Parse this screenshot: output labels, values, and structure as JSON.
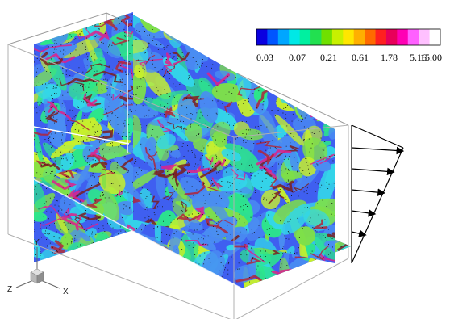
{
  "colorbar": {
    "tick_labels": [
      "0.03",
      "0.07",
      "0.21",
      "0.61",
      "1.78",
      "5.16",
      "15.00"
    ],
    "colors": [
      "#0a00e0",
      "#0055ff",
      "#00a6ff",
      "#00e8e6",
      "#00f0a0",
      "#22e050",
      "#70e000",
      "#c8f000",
      "#ffe600",
      "#ffb000",
      "#ff6a00",
      "#ff2020",
      "#e8005a",
      "#ff00b4",
      "#ff60ff",
      "#ffc0ff",
      "#ffffff"
    ]
  },
  "field_palette": {
    "background": "#3f5ff0",
    "low": "#4a8df2",
    "mid": [
      "#33d6e8",
      "#2ce68a",
      "#7ee048",
      "#c6ef2c"
    ],
    "high": [
      "#7b1e1e",
      "#b0263a",
      "#e0208a"
    ],
    "particles": "#111111"
  },
  "axes_triad": {
    "x_label": "X",
    "y_label": "Y",
    "z_label": "Z"
  },
  "inflow_profile": {
    "arrow_count": 5,
    "shape": "linear-shear"
  }
}
